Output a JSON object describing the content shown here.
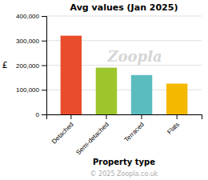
{
  "chart_data": {
    "type": "bar",
    "title": "Avg values (Jan 2025)",
    "categories": [
      "Detached",
      "Semi-detached",
      "Terraced",
      "Flats"
    ],
    "values": [
      320000,
      190000,
      160000,
      125000
    ],
    "colors": [
      "#e84c2a",
      "#9dc62d",
      "#5bbcbe",
      "#f5b800"
    ],
    "ylabel": "£",
    "xlabel": "Property type",
    "ylim": [
      0,
      400000
    ],
    "yticks": [
      0,
      {
        "value": 100000,
        "label": "100,000"
      },
      {
        "value": 200000,
        "label": "200,000"
      },
      {
        "value": 300000,
        "label": "300,000"
      },
      {
        "value": 400000,
        "label": "400,000"
      }
    ],
    "grid": true,
    "annotations": [
      "Zoopla",
      "© 2025 Zoopla.co.uk"
    ]
  }
}
